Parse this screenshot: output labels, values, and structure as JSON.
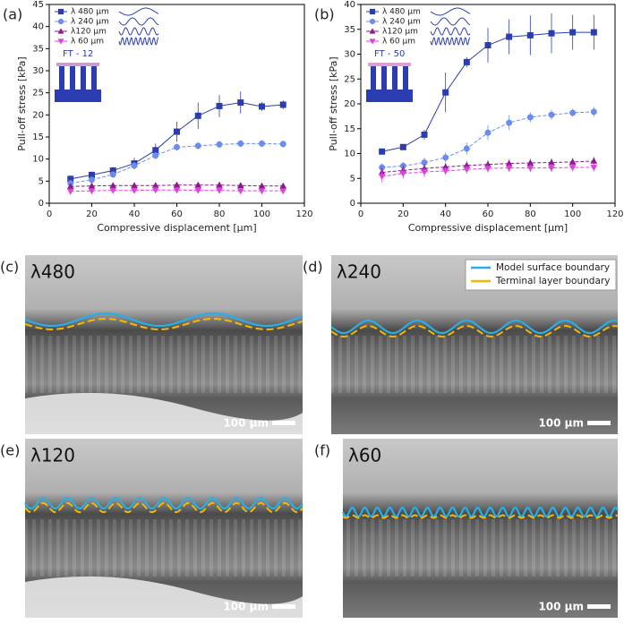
{
  "chart_data": [
    {
      "type": "line",
      "panel": "(a)",
      "inset": "FT - 12",
      "xlabel": "Compressive displacement [μm]",
      "ylabel": "Pull-off stress [kPa]",
      "x": [
        10,
        20,
        30,
        40,
        50,
        60,
        70,
        80,
        90,
        100,
        110
      ],
      "xlim": [
        0,
        120
      ],
      "xticks": [
        0,
        20,
        40,
        60,
        80,
        100,
        120
      ],
      "ylim": [
        0,
        45
      ],
      "yticks": [
        0,
        5,
        10,
        15,
        20,
        25,
        30,
        35,
        40,
        45
      ],
      "legend": "upper left",
      "series": [
        {
          "name": "λ 480 µm",
          "color": "#2b3db0",
          "marker": "square",
          "values": [
            5.5,
            6.4,
            7.4,
            9,
            12,
            16.2,
            19.8,
            22,
            22.8,
            21.9,
            22.3
          ],
          "errors": [
            0.8,
            0.8,
            0.8,
            1.3,
            1.5,
            2.3,
            3,
            2.5,
            2.5,
            1,
            1
          ]
        },
        {
          "name": "λ 240 µm",
          "color": "#6b8cf0",
          "marker": "circle",
          "values": [
            4.5,
            5.3,
            6.5,
            8.5,
            10.8,
            12.7,
            13,
            13.3,
            13.5,
            13.5,
            13.4
          ],
          "errors": [
            0.6,
            0.6,
            0.7,
            0.8,
            0.8,
            0.8,
            0.8,
            0.8,
            0.8,
            0.8,
            0.8
          ]
        },
        {
          "name": "λ120 µm",
          "color": "#8b1a8b",
          "marker": "triangle-up",
          "values": [
            3.8,
            3.9,
            4,
            4,
            4,
            4.1,
            4.1,
            4.1,
            4,
            3.9,
            3.9
          ],
          "errors": [
            0.3,
            0.3,
            0.3,
            0.3,
            0.3,
            0.3,
            0.3,
            0.3,
            0.3,
            0.3,
            0.3
          ]
        },
        {
          "name": "λ 60 µm",
          "color": "#e040e0",
          "marker": "triangle-down",
          "values": [
            2.7,
            2.8,
            2.9,
            2.9,
            3,
            3,
            2.9,
            2.9,
            2.8,
            2.8,
            2.8
          ],
          "errors": [
            0.3,
            0.3,
            0.3,
            0.3,
            0.3,
            0.3,
            0.3,
            0.3,
            0.3,
            0.3,
            0.3
          ]
        }
      ]
    },
    {
      "type": "line",
      "panel": "(b)",
      "inset": "FT - 50",
      "xlabel": "Compressive displacement [μm]",
      "ylabel": "Pull-off stress [kPa]",
      "x": [
        10,
        20,
        30,
        40,
        50,
        60,
        70,
        80,
        90,
        100,
        110
      ],
      "xlim": [
        0,
        120
      ],
      "xticks": [
        0,
        20,
        40,
        60,
        80,
        100,
        120
      ],
      "ylim": [
        0,
        40
      ],
      "yticks": [
        0,
        5,
        10,
        15,
        20,
        25,
        30,
        35,
        40
      ],
      "legend": "upper left",
      "series": [
        {
          "name": "λ 480 µm",
          "color": "#2b3db0",
          "marker": "square",
          "values": [
            10.4,
            11.3,
            13.8,
            22.3,
            28.4,
            31.8,
            33.5,
            33.8,
            34.2,
            34.4,
            34.4
          ],
          "errors": [
            0.5,
            0.5,
            1,
            4,
            1,
            3.5,
            3.5,
            4,
            4,
            3.5,
            3.5
          ]
        },
        {
          "name": "λ 240 µm",
          "color": "#6b8cf0",
          "marker": "circle",
          "values": [
            7.2,
            7.5,
            8.2,
            9.2,
            11,
            14.2,
            16.2,
            17.3,
            17.8,
            18.2,
            18.4
          ],
          "errors": [
            0.8,
            0.8,
            1,
            1,
            1.2,
            1.5,
            1.5,
            1,
            1,
            0.8,
            1
          ]
        },
        {
          "name": "λ120 µm",
          "color": "#8b1a8b",
          "marker": "triangle-up",
          "values": [
            6.2,
            6.6,
            7,
            7.3,
            7.6,
            7.8,
            8,
            8.1,
            8.2,
            8.3,
            8.5
          ],
          "errors": [
            1,
            1,
            1,
            0.8,
            0.8,
            0.8,
            0.8,
            0.8,
            0.8,
            0.8,
            0.8
          ]
        },
        {
          "name": "λ 60 µm",
          "color": "#e040e0",
          "marker": "triangle-down",
          "values": [
            5.4,
            6,
            6.3,
            6.5,
            6.8,
            7,
            7.1,
            7.1,
            7.1,
            7.2,
            7.2
          ],
          "errors": [
            1.2,
            1,
            1,
            0.8,
            0.8,
            0.8,
            0.8,
            0.8,
            0.8,
            0.8,
            0.8
          ]
        }
      ]
    }
  ],
  "panels": [
    {
      "label": "(c)",
      "title": "λ480",
      "scale_bar": "100 µm"
    },
    {
      "label": "(d)",
      "title": "λ240",
      "scale_bar": "100 µm"
    },
    {
      "label": "(e)",
      "title": "λ120",
      "scale_bar": "100 µm"
    },
    {
      "label": "(f)",
      "title": "λ60",
      "scale_bar": "100 µm"
    }
  ],
  "image_legend": [
    "Model surface boundary",
    "Terminal layer boundary"
  ]
}
